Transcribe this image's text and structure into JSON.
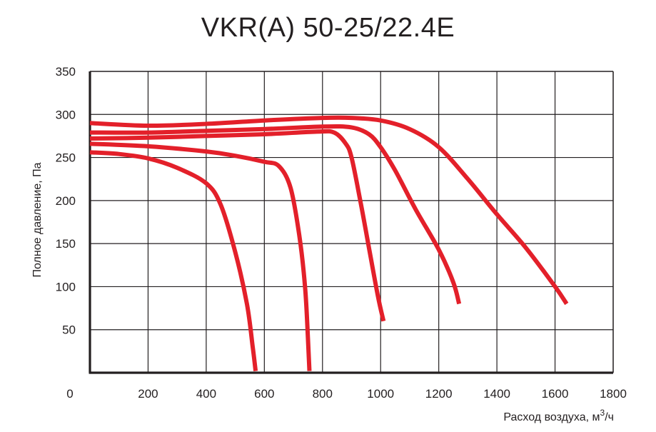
{
  "chart_data": {
    "type": "line",
    "title": "VKR(A) 50-25/22.4E",
    "xlabel": "Расход воздуха, м",
    "xlabel_sup": "3",
    "xlabel_suffix": "/ч",
    "ylabel": "Полное давление, Па",
    "xlim": [
      0,
      1800
    ],
    "ylim": [
      0,
      350
    ],
    "x_ticks": [
      0,
      200,
      400,
      600,
      800,
      1000,
      1200,
      1400,
      1600,
      1800
    ],
    "y_ticks": [
      50,
      100,
      150,
      200,
      250,
      300,
      350
    ],
    "grid": true,
    "line_color": "#e3202a",
    "series": [
      {
        "points": [
          [
            0,
            256
          ],
          [
            100,
            254
          ],
          [
            200,
            249
          ],
          [
            300,
            238
          ],
          [
            400,
            220
          ],
          [
            450,
            195
          ],
          [
            500,
            140
          ],
          [
            540,
            80
          ],
          [
            560,
            30
          ],
          [
            570,
            2
          ]
        ]
      },
      {
        "points": [
          [
            0,
            266
          ],
          [
            200,
            263
          ],
          [
            400,
            257
          ],
          [
            500,
            252
          ],
          [
            600,
            245
          ],
          [
            650,
            240
          ],
          [
            690,
            215
          ],
          [
            720,
            160
          ],
          [
            740,
            100
          ],
          [
            750,
            40
          ],
          [
            755,
            2
          ]
        ]
      },
      {
        "points": [
          [
            0,
            272
          ],
          [
            200,
            273
          ],
          [
            400,
            275
          ],
          [
            600,
            277
          ],
          [
            780,
            280
          ],
          [
            840,
            279
          ],
          [
            880,
            266
          ],
          [
            900,
            250
          ],
          [
            930,
            200
          ],
          [
            960,
            145
          ],
          [
            990,
            90
          ],
          [
            1010,
            60
          ]
        ]
      },
      {
        "points": [
          [
            0,
            279
          ],
          [
            200,
            279
          ],
          [
            400,
            281
          ],
          [
            600,
            283
          ],
          [
            800,
            286
          ],
          [
            900,
            285
          ],
          [
            960,
            277
          ],
          [
            1000,
            262
          ],
          [
            1050,
            235
          ],
          [
            1120,
            190
          ],
          [
            1200,
            143
          ],
          [
            1250,
            105
          ],
          [
            1270,
            80
          ]
        ]
      },
      {
        "points": [
          [
            0,
            290
          ],
          [
            200,
            287
          ],
          [
            400,
            289
          ],
          [
            600,
            293
          ],
          [
            800,
            296
          ],
          [
            900,
            296
          ],
          [
            1000,
            293
          ],
          [
            1100,
            283
          ],
          [
            1200,
            262
          ],
          [
            1300,
            225
          ],
          [
            1400,
            184
          ],
          [
            1500,
            145
          ],
          [
            1600,
            100
          ],
          [
            1640,
            80
          ]
        ]
      }
    ]
  }
}
